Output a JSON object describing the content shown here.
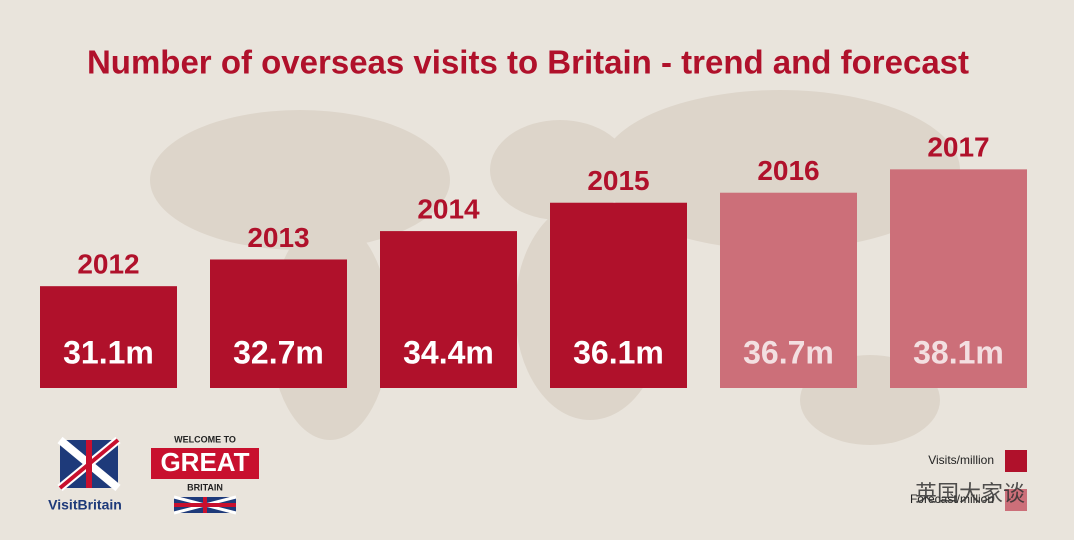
{
  "chart_data": {
    "type": "bar",
    "title": "Number of overseas visits to Britain - trend and forecast",
    "categories": [
      "2012",
      "2013",
      "2014",
      "2015",
      "2016",
      "2017"
    ],
    "series": [
      {
        "name": "Visits/million",
        "color": "#b0112b",
        "text_color": "#ffffff",
        "values": [
          31.1,
          32.7,
          34.4,
          36.1,
          null,
          null
        ],
        "value_labels": [
          "31.1m",
          "32.7m",
          "34.4m",
          "36.1m",
          null,
          null
        ]
      },
      {
        "name": "Forecast/million",
        "color": "#cc6f79",
        "text_color": "#f3dfe1",
        "values": [
          null,
          null,
          null,
          null,
          36.7,
          38.1
        ],
        "value_labels": [
          null,
          null,
          null,
          null,
          "36.7m",
          "38.1m"
        ]
      }
    ],
    "ylim": [
      25,
      38.6
    ]
  },
  "logos": {
    "visit_britain": "VisitBritain",
    "welcome": "WELCOME TO",
    "great": "GREAT",
    "britain": "BRITAIN"
  },
  "watermark": "英国大家谈"
}
